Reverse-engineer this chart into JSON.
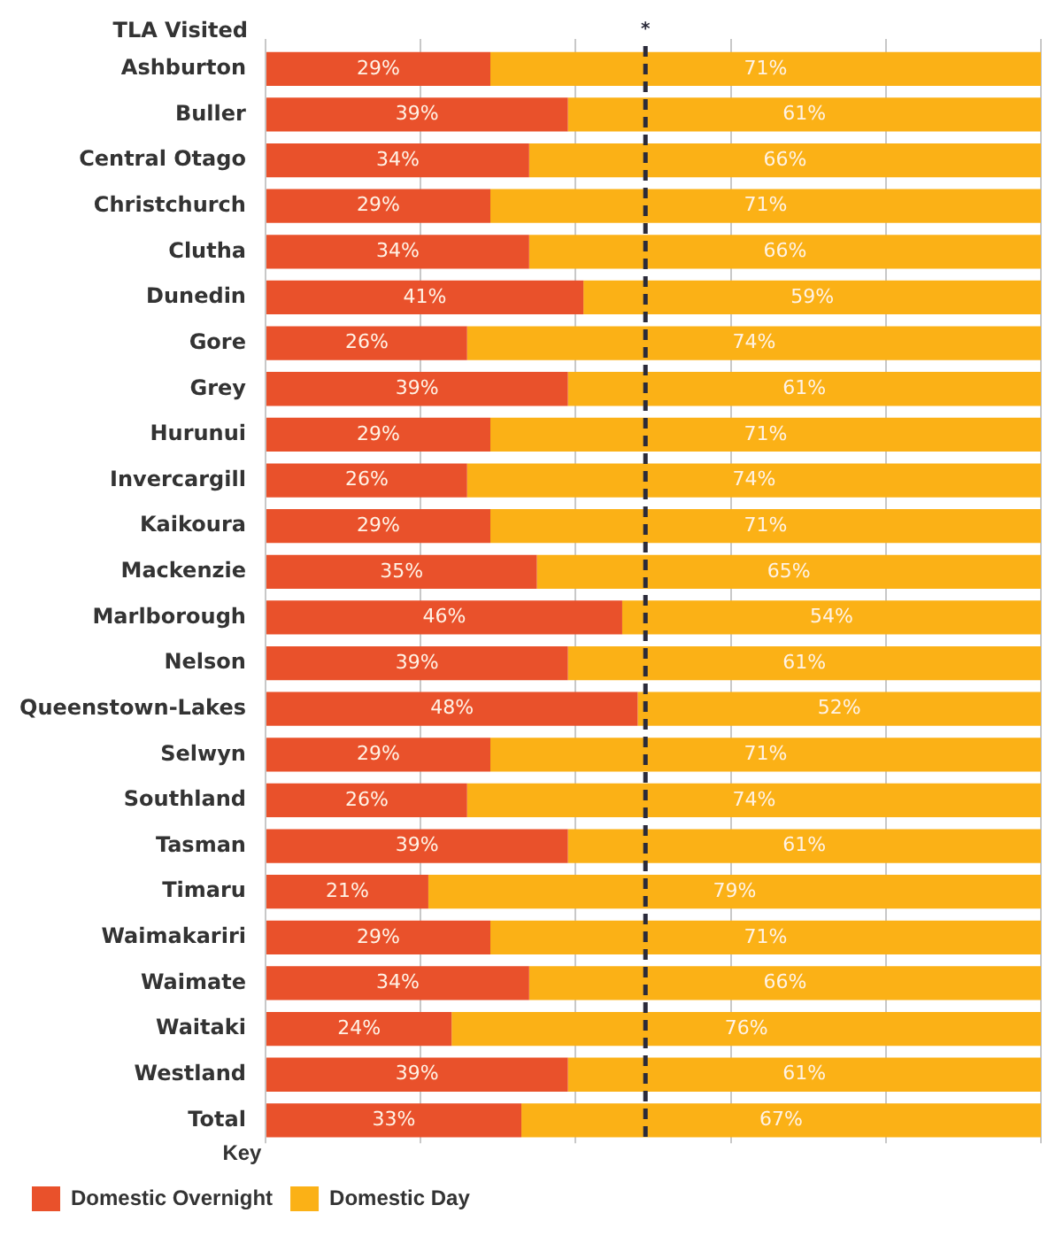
{
  "chart_data": {
    "type": "bar",
    "orientation": "horizontal",
    "stacked": true,
    "ylabel": "TLA Visited",
    "legend_title": "Key",
    "legend": "bottom",
    "tick_labels": "y",
    "grid": "x",
    "categories": [
      "Ashburton",
      "Buller",
      "Central Otago",
      "Christchurch",
      "Clutha",
      "Dunedin",
      "Gore",
      "Grey",
      "Hurunui",
      "Invercargill",
      "Kaikoura",
      "Mackenzie",
      "Marlborough",
      "Nelson",
      "Queenstown-Lakes",
      "Selwyn",
      "Southland",
      "Tasman",
      "Timaru",
      "Waimakariri",
      "Waimate",
      "Waitaki",
      "Westland",
      "Total"
    ],
    "xlim": [
      0,
      100
    ],
    "xticks": [
      {
        "value": 0,
        "label": null
      },
      {
        "value": 20,
        "label": null
      },
      {
        "value": 40,
        "label": null
      },
      {
        "value": 60,
        "label": null
      },
      {
        "value": 80,
        "label": null
      },
      {
        "value": 100,
        "label": null
      }
    ],
    "series": [
      {
        "name": "Domestic Overnight",
        "color": "#e9512b",
        "values": [
          29,
          39,
          34,
          29,
          34,
          41,
          26,
          39,
          29,
          26,
          29,
          35,
          46,
          39,
          48,
          29,
          26,
          39,
          21,
          29,
          34,
          24,
          39,
          33
        ],
        "value_labels": [
          "29%",
          "39%",
          "34%",
          "29%",
          "34%",
          "41%",
          "26%",
          "39%",
          "29%",
          "26%",
          "29%",
          "35%",
          "46%",
          "39%",
          "48%",
          "29%",
          "26%",
          "39%",
          "21%",
          "29%",
          "34%",
          "24%",
          "39%",
          "33%"
        ]
      },
      {
        "name": "Domestic Day",
        "color": "#fbb116",
        "values": [
          71,
          61,
          66,
          71,
          66,
          59,
          74,
          61,
          71,
          74,
          71,
          65,
          54,
          61,
          52,
          71,
          74,
          61,
          79,
          71,
          66,
          76,
          61,
          67
        ],
        "value_labels": [
          "71%",
          "61%",
          "66%",
          "71%",
          "66%",
          "59%",
          "74%",
          "61%",
          "71%",
          "74%",
          "71%",
          "65%",
          "54%",
          "61%",
          "52%",
          "71%",
          "74%",
          "61%",
          "79%",
          "71%",
          "66%",
          "76%",
          "61%",
          "67%"
        ]
      }
    ],
    "ref_lines": [
      {
        "axis": "x",
        "value": 49,
        "label": "*",
        "color": "#2b2b3a",
        "line_style": "dashed"
      }
    ]
  }
}
